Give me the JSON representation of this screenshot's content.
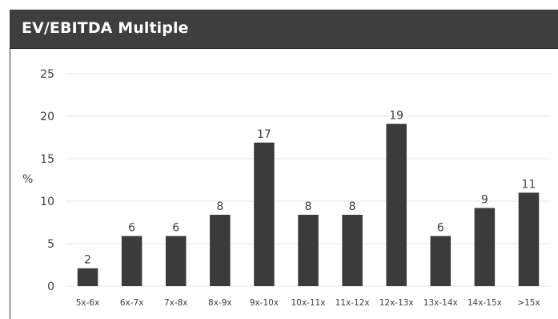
{
  "header": {
    "title": "EV/EBITDA Multiple"
  },
  "colors": {
    "header_bg": "#3e3e3e",
    "bar": "#3b3b3b",
    "gridline": "#e6e6e6",
    "text": "#404040"
  },
  "chart_data": {
    "type": "bar",
    "title": "EV/EBITDA Multiple",
    "ylabel": "%",
    "xlabel": "",
    "categories": [
      "5x-6x",
      "6x-7x",
      "7x-8x",
      "8x-9x",
      "9x-10x",
      "10x-11x",
      "11x-12x",
      "12x-13x",
      "13x-14x",
      "14x-15x",
      ">15x"
    ],
    "values": [
      2,
      6,
      6,
      8,
      17,
      8,
      8,
      19,
      6,
      9,
      11
    ],
    "bar_heights": [
      2.1,
      5.9,
      5.9,
      8.4,
      16.9,
      8.4,
      8.4,
      19.1,
      5.9,
      9.2,
      11.0
    ],
    "ylim": [
      0,
      25
    ],
    "yticks": [
      0,
      5,
      10,
      15,
      20,
      25
    ],
    "grid": true,
    "legend": "none"
  }
}
